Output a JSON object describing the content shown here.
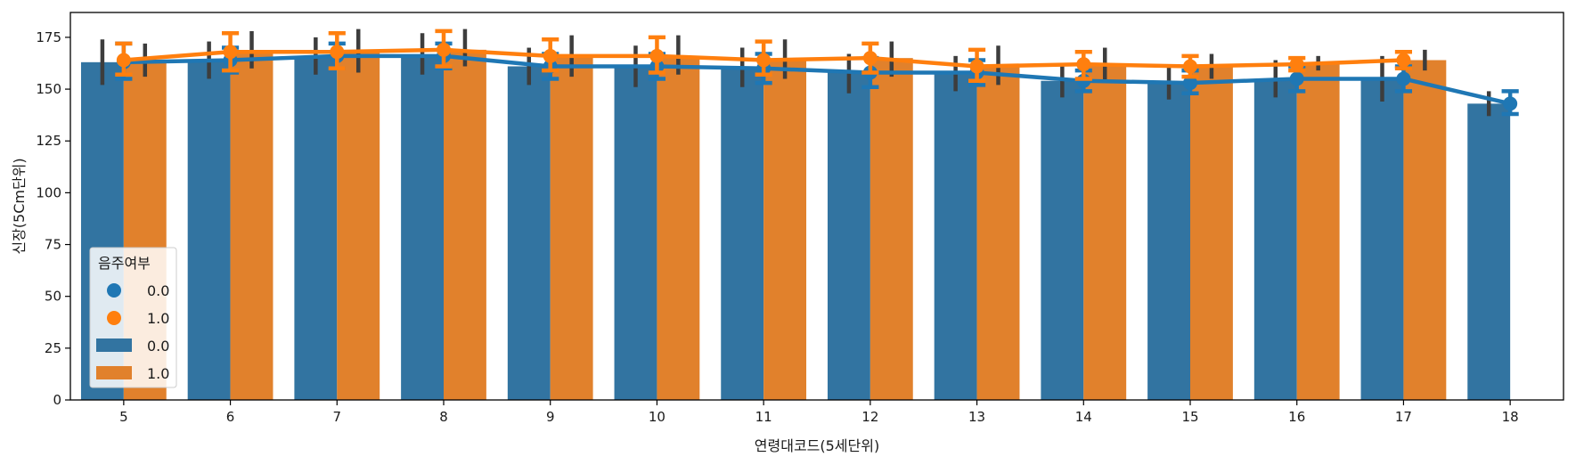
{
  "chart_data": {
    "type": "bar",
    "title": "",
    "xlabel": "연령대코드(5세단위)",
    "ylabel": "신장(5Cm단위)",
    "ylim": [
      0,
      187
    ],
    "yticks": [
      0,
      25,
      50,
      75,
      100,
      125,
      150,
      175
    ],
    "categories": [
      "5",
      "6",
      "7",
      "8",
      "9",
      "10",
      "11",
      "12",
      "13",
      "14",
      "15",
      "16",
      "17",
      "18"
    ],
    "bar_series": [
      {
        "name": "0.0",
        "color": "#3274a1",
        "values": [
          163,
          164,
          166,
          166,
          161,
          161,
          160,
          158,
          158,
          154,
          153,
          155,
          155,
          143
        ],
        "ci_low": [
          152,
          155,
          157,
          157,
          152,
          151,
          151,
          148,
          149,
          146,
          145,
          146,
          144,
          137
        ],
        "ci_high": [
          174,
          173,
          175,
          177,
          170,
          171,
          170,
          167,
          166,
          162,
          162,
          164,
          166,
          149
        ]
      },
      {
        "name": "1.0",
        "color": "#e1812c",
        "values": [
          164,
          168,
          168,
          169,
          166,
          166,
          164,
          165,
          161,
          162,
          161,
          162,
          164,
          null
        ],
        "ci_low": [
          156,
          160,
          158,
          161,
          156,
          157,
          155,
          156,
          152,
          154,
          155,
          159,
          159,
          null
        ],
        "ci_high": [
          172,
          178,
          179,
          179,
          176,
          176,
          174,
          173,
          171,
          170,
          167,
          166,
          169,
          null
        ]
      }
    ],
    "point_series": [
      {
        "name": "0.0",
        "color": "#1f77b4",
        "values": [
          163,
          164,
          166,
          166,
          161,
          161,
          160,
          158,
          158,
          154,
          153,
          155,
          155,
          143
        ],
        "ci_low": [
          155,
          158,
          160,
          160,
          155,
          155,
          153,
          151,
          152,
          149,
          148,
          149,
          149,
          138
        ],
        "ci_high": [
          172,
          170,
          172,
          172,
          167,
          167,
          167,
          165,
          164,
          159,
          159,
          161,
          161,
          149
        ]
      },
      {
        "name": "1.0",
        "color": "#ff7f0e",
        "values": [
          164,
          168,
          168,
          169,
          166,
          166,
          164,
          165,
          161,
          162,
          161,
          162,
          164,
          null
        ],
        "ci_low": [
          157,
          159,
          160,
          161,
          159,
          158,
          157,
          158,
          154,
          155,
          156,
          159,
          160,
          null
        ],
        "ci_high": [
          172,
          177,
          177,
          178,
          174,
          175,
          173,
          172,
          169,
          168,
          166,
          165,
          168,
          null
        ]
      }
    ],
    "legend": {
      "title": "음주여부",
      "placement": "lower-left",
      "entries": [
        {
          "label": "0.0",
          "kind": "point",
          "color": "#1f77b4"
        },
        {
          "label": "1.0",
          "kind": "point",
          "color": "#ff7f0e"
        },
        {
          "label": "0.0",
          "kind": "bar",
          "color": "#3274a1"
        },
        {
          "label": "1.0",
          "kind": "bar",
          "color": "#e1812c"
        }
      ]
    },
    "grid": false
  }
}
